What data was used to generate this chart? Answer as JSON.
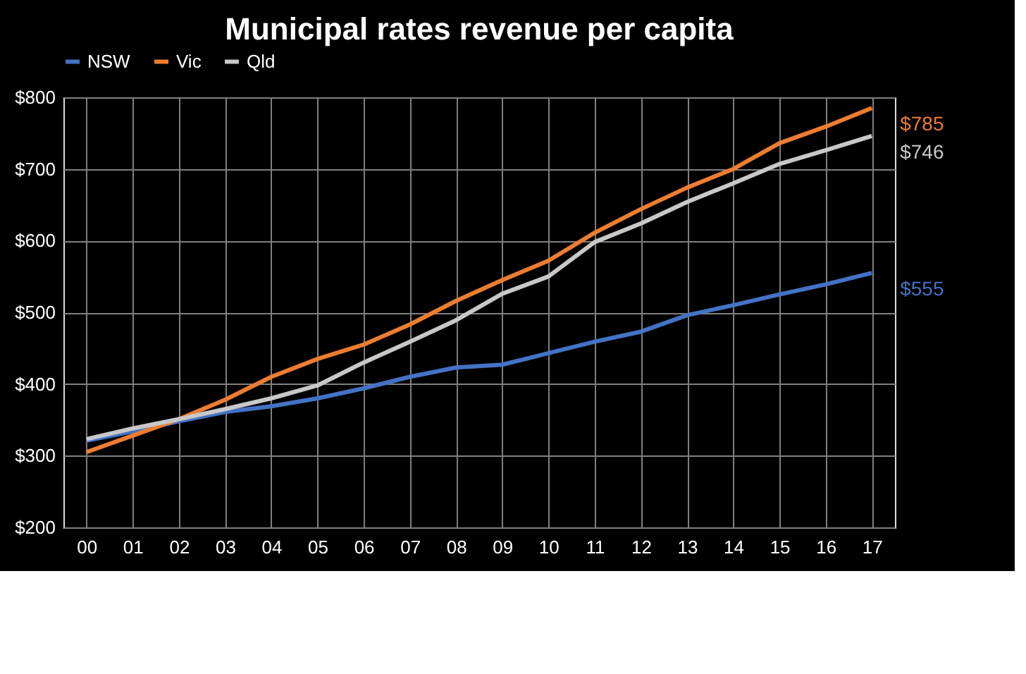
{
  "chart_data": {
    "type": "line",
    "title": "Municipal rates revenue per capita",
    "categories": [
      "00",
      "01",
      "02",
      "03",
      "04",
      "05",
      "06",
      "07",
      "08",
      "09",
      "10",
      "11",
      "12",
      "13",
      "14",
      "15",
      "16",
      "17"
    ],
    "series": [
      {
        "name": "NSW",
        "color": "#4472c4",
        "values": [
          321,
          334,
          348,
          361,
          369,
          380,
          394,
          410,
          423,
          427,
          443,
          459,
          473,
          496,
          510,
          525,
          539,
          555
        ],
        "value_labels": [
          null,
          null,
          null,
          null,
          null,
          null,
          null,
          null,
          null,
          null,
          null,
          null,
          null,
          null,
          null,
          null,
          null,
          "$555"
        ]
      },
      {
        "name": "Vic",
        "color": "#ed7d31",
        "values": [
          305,
          328,
          351,
          378,
          410,
          435,
          455,
          483,
          516,
          545,
          572,
          611,
          644,
          674,
          700,
          736,
          759,
          785
        ],
        "value_labels": [
          null,
          null,
          null,
          null,
          null,
          null,
          null,
          null,
          null,
          null,
          null,
          null,
          null,
          null,
          null,
          null,
          null,
          "$785"
        ]
      },
      {
        "name": "Qld",
        "color": "#c8c8c8",
        "values": [
          323,
          338,
          351,
          365,
          380,
          398,
          430,
          459,
          489,
          526,
          550,
          598,
          624,
          654,
          680,
          707,
          726,
          746
        ],
        "value_labels": [
          null,
          null,
          null,
          null,
          null,
          null,
          null,
          null,
          null,
          null,
          null,
          null,
          null,
          null,
          null,
          null,
          null,
          "$746"
        ]
      }
    ],
    "ylim": [
      200,
      800
    ],
    "yticks": [
      {
        "value": 200,
        "label": "$200"
      },
      {
        "value": 300,
        "label": "$300"
      },
      {
        "value": 400,
        "label": "$400"
      },
      {
        "value": 500,
        "label": "$500"
      },
      {
        "value": 600,
        "label": "$600"
      },
      {
        "value": 700,
        "label": "$700"
      },
      {
        "value": 800,
        "label": "$800"
      }
    ],
    "grid": true,
    "legend": "top",
    "marker": "none",
    "line_style": "solid"
  }
}
